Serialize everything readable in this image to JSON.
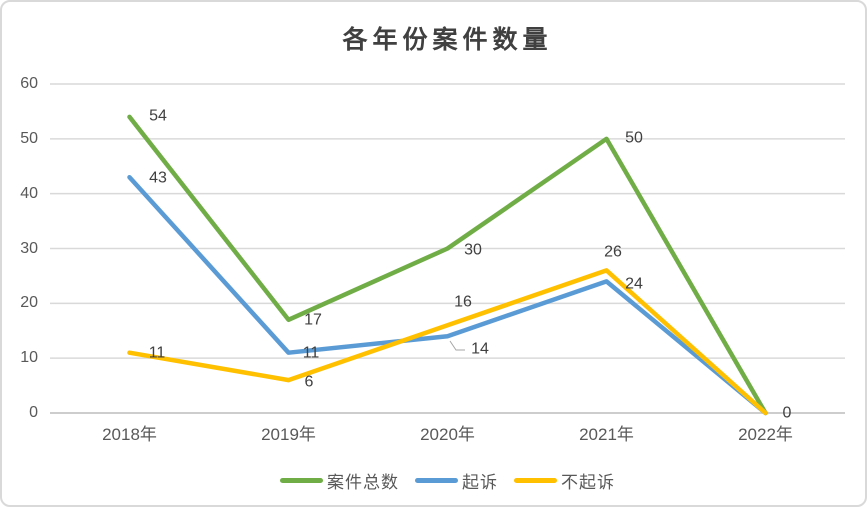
{
  "chart_data": {
    "type": "line",
    "title": "各年份案件数量",
    "categories": [
      "2018年",
      "2019年",
      "2020年",
      "2021年",
      "2022年"
    ],
    "series": [
      {
        "name": "案件总数",
        "color": "#70AD47",
        "values": [
          54,
          17,
          30,
          50,
          0
        ]
      },
      {
        "name": "起诉",
        "color": "#5B9BD5",
        "values": [
          43,
          11,
          14,
          24,
          0
        ]
      },
      {
        "name": "不起诉",
        "color": "#FFC000",
        "values": [
          11,
          6,
          16,
          26,
          0
        ]
      }
    ],
    "y_ticks": [
      0,
      10,
      20,
      30,
      40,
      50,
      60
    ],
    "ylim": [
      0,
      60
    ],
    "xlabel": "",
    "ylabel": "",
    "grid": true,
    "data_labels": true,
    "legend_position": "bottom",
    "colors": {
      "gridline": "#D9D9D9",
      "axis_line": "#C6C6C6",
      "tick_text": "#595959",
      "data_label_text": "#404040",
      "title_text": "#404040",
      "leader_line": "#A6A6A6",
      "border": "#D9D9D9",
      "background": "#FFFFFF"
    }
  }
}
